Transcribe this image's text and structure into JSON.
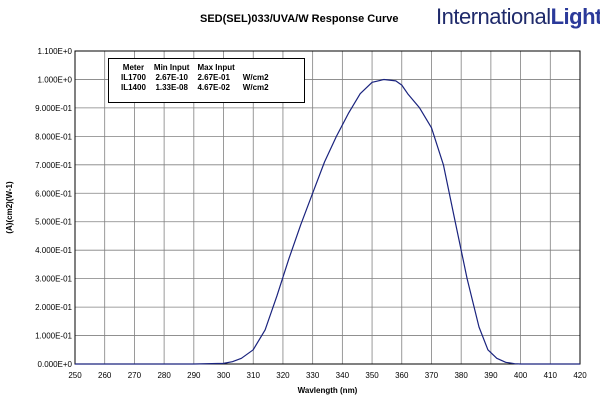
{
  "chart_data": {
    "type": "line",
    "title": "SED(SEL)033/UVA/W Response Curve",
    "xlabel": "Wavlength (nm)",
    "ylabel": "(A)(cm2)(W-1)",
    "xlim": [
      250,
      420
    ],
    "ylim": [
      0,
      1.1
    ],
    "x_ticks": [
      250,
      260,
      270,
      280,
      290,
      300,
      310,
      320,
      330,
      340,
      350,
      360,
      370,
      380,
      390,
      400,
      410,
      420
    ],
    "x_tick_labels": [
      "250",
      "260",
      "270",
      "280",
      "290",
      "300",
      "310",
      "320",
      "330",
      "340",
      "350",
      "360",
      "370",
      "380",
      "390",
      "400",
      "410",
      "420"
    ],
    "y_ticks": [
      0,
      0.1,
      0.2,
      0.3,
      0.4,
      0.5,
      0.6,
      0.7,
      0.8,
      0.9,
      1.0,
      1.1
    ],
    "y_tick_labels": [
      "0.000E+0",
      "1.000E-01",
      "2.000E-01",
      "3.000E-01",
      "4.000E-01",
      "5.000E-01",
      "6.000E-01",
      "7.000E-01",
      "8.000E-01",
      "9.000E-01",
      "1.000E+0",
      "1.100E+0"
    ],
    "grid": true,
    "series": [
      {
        "color": "#1a237e",
        "x": [
          250,
          290,
          300,
          303,
          306,
          310,
          314,
          318,
          322,
          326,
          330,
          334,
          338,
          342,
          346,
          350,
          354,
          358,
          360,
          362,
          366,
          370,
          374,
          378,
          382,
          386,
          389,
          392,
          395,
          398,
          400,
          410,
          420
        ],
        "y": [
          0.0,
          0.0,
          0.002,
          0.008,
          0.02,
          0.05,
          0.12,
          0.24,
          0.37,
          0.49,
          0.6,
          0.71,
          0.8,
          0.88,
          0.95,
          0.99,
          1.0,
          0.995,
          0.98,
          0.95,
          0.9,
          0.83,
          0.7,
          0.5,
          0.3,
          0.13,
          0.05,
          0.02,
          0.006,
          0.001,
          0.0,
          0.0,
          0.0
        ]
      }
    ]
  },
  "header": {
    "title": "SED(SEL)033/UVA/W Response Curve",
    "logo_part1": "International",
    "logo_part2": "Light"
  },
  "legend_table": {
    "headers": [
      "Meter",
      "Min Input",
      "Max Input",
      ""
    ],
    "rows": [
      [
        "IL1700",
        "2.67E-10",
        "2.67E-01",
        "W/cm2"
      ],
      [
        "IL1400",
        "1.33E-08",
        "4.67E-02",
        "W/cm2"
      ]
    ]
  }
}
